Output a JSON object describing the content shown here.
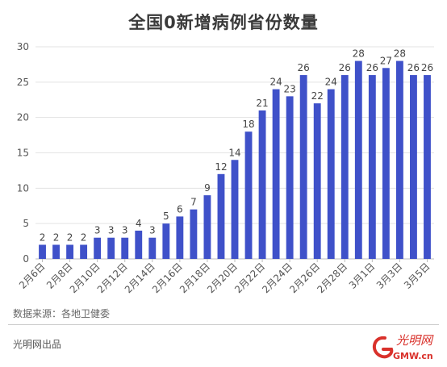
{
  "chart_data": {
    "type": "bar",
    "title": "全国0新增病例省份数量",
    "categories": [
      "2月6日",
      "2月7日",
      "2月8日",
      "2月9日",
      "2月10日",
      "2月11日",
      "2月12日",
      "2月13日",
      "2月14日",
      "2月15日",
      "2月16日",
      "2月17日",
      "2月18日",
      "2月19日",
      "2月20日",
      "2月21日",
      "2月22日",
      "2月23日",
      "2月24日",
      "2月25日",
      "2月26日",
      "2月27日",
      "2月28日",
      "2月29日",
      "3月1日",
      "3月2日",
      "3月3日",
      "3月4日",
      "3月5日"
    ],
    "tick_labels_shown": [
      "2月6日",
      "2月8日",
      "2月10日",
      "2月12日",
      "2月14日",
      "2月16日",
      "2月18日",
      "2月20日",
      "2月22日",
      "2月24日",
      "2月26日",
      "2月28日",
      "3月1日",
      "3月3日",
      "3月5日"
    ],
    "values": [
      2,
      2,
      2,
      2,
      3,
      3,
      3,
      4,
      3,
      5,
      6,
      7,
      9,
      12,
      14,
      18,
      21,
      24,
      23,
      26,
      22,
      24,
      26,
      28,
      26,
      27,
      28,
      26,
      26
    ],
    "ylim": [
      0,
      30
    ],
    "yticks": [
      0,
      5,
      10,
      15,
      20,
      25,
      30
    ],
    "grid": true,
    "bar_color": "#3f51c9",
    "xlabel": "",
    "ylabel": ""
  },
  "footer": {
    "source": "数据来源：各地卫健委",
    "publisher": "光明网出品"
  },
  "logo": {
    "icon": "guangming-net-logo",
    "text": "光明网",
    "domain": "GMW.cn",
    "color": "#d9312b"
  }
}
